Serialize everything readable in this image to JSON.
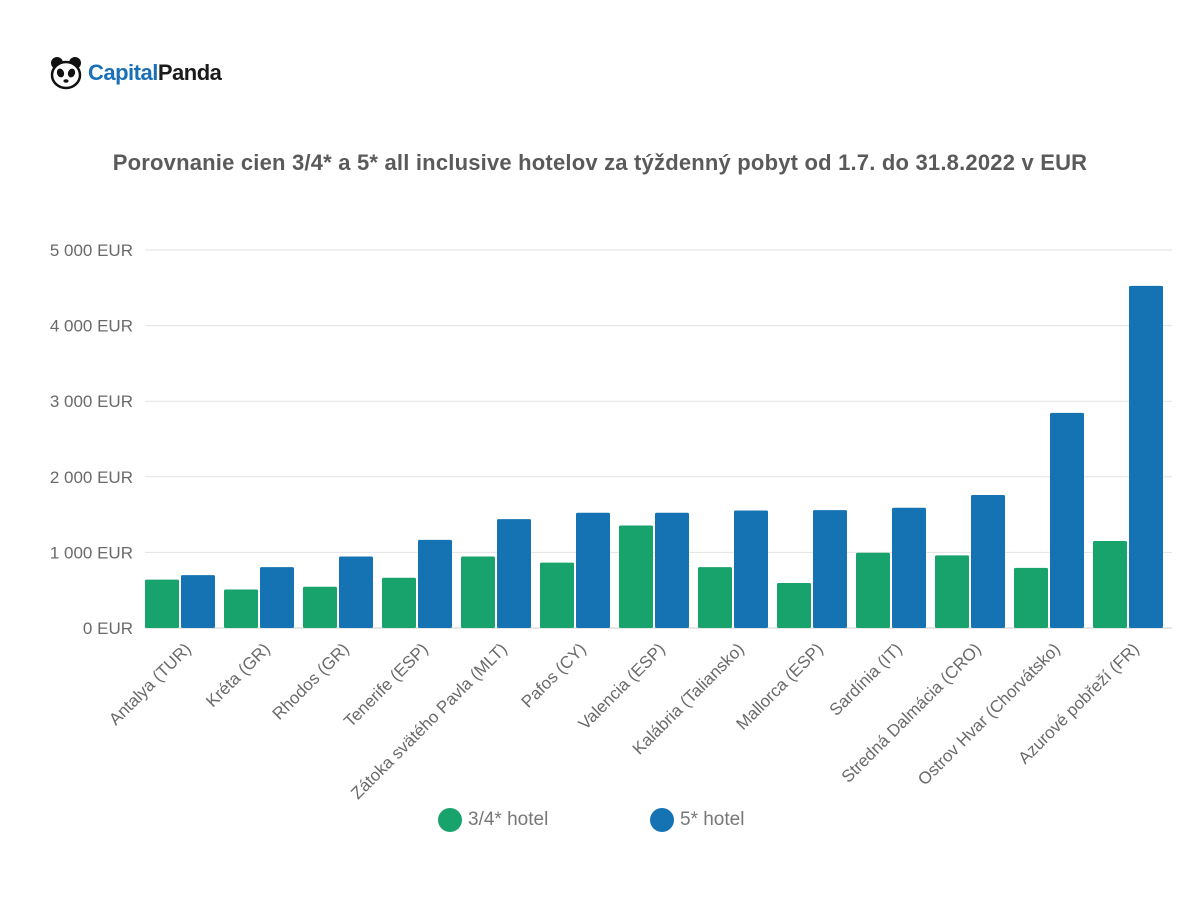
{
  "brand": {
    "part1": "Capital",
    "part2": "Panda",
    "icon": "panda-icon"
  },
  "colors": {
    "series_3_4": "#17a36b",
    "series_5": "#1573b3",
    "grid": "#e3e3e3",
    "text": "#6a6a6a"
  },
  "chart_data": {
    "type": "bar",
    "title": "Porovnanie cien 3/4* a 5* all inclusive hotelov za týždenný pobyt od 1.7. do 31.8.2022 v EUR",
    "xlabel": "",
    "ylabel": "",
    "ylim": [
      0,
      5000
    ],
    "yticks": [
      0,
      1000,
      2000,
      3000,
      4000,
      5000
    ],
    "ytick_labels": [
      "0  EUR",
      "1 000  EUR",
      "2 000  EUR",
      "3 000  EUR",
      "4 000  EUR",
      "5 000  EUR"
    ],
    "categories": [
      "Antalya (TUR)",
      "Kréta (GR)",
      "Rhodos (GR)",
      "Tenerife (ESP)",
      "Zátoka svätého Pavla (MLT)",
      "Pafos (CY)",
      "Valencia (ESP)",
      "Kalábria (Taliansko)",
      "Mallorca (ESP)",
      "Sardínia (IT)",
      "Stredná Dalmácia (CRO)",
      "Ostrov Hvar (Chorvátsko)",
      "Azurové pobřeží (FR)"
    ],
    "series": [
      {
        "name": "3/4* hotel",
        "values": [
          640,
          510,
          545,
          665,
          945,
          865,
          1355,
          805,
          595,
          995,
          960,
          795,
          1150
        ]
      },
      {
        "name": "5* hotel",
        "values": [
          700,
          805,
          945,
          1165,
          1440,
          1525,
          1525,
          1555,
          1560,
          1590,
          1760,
          2845,
          4525
        ]
      }
    ],
    "grid": true,
    "legend": "bottom"
  }
}
